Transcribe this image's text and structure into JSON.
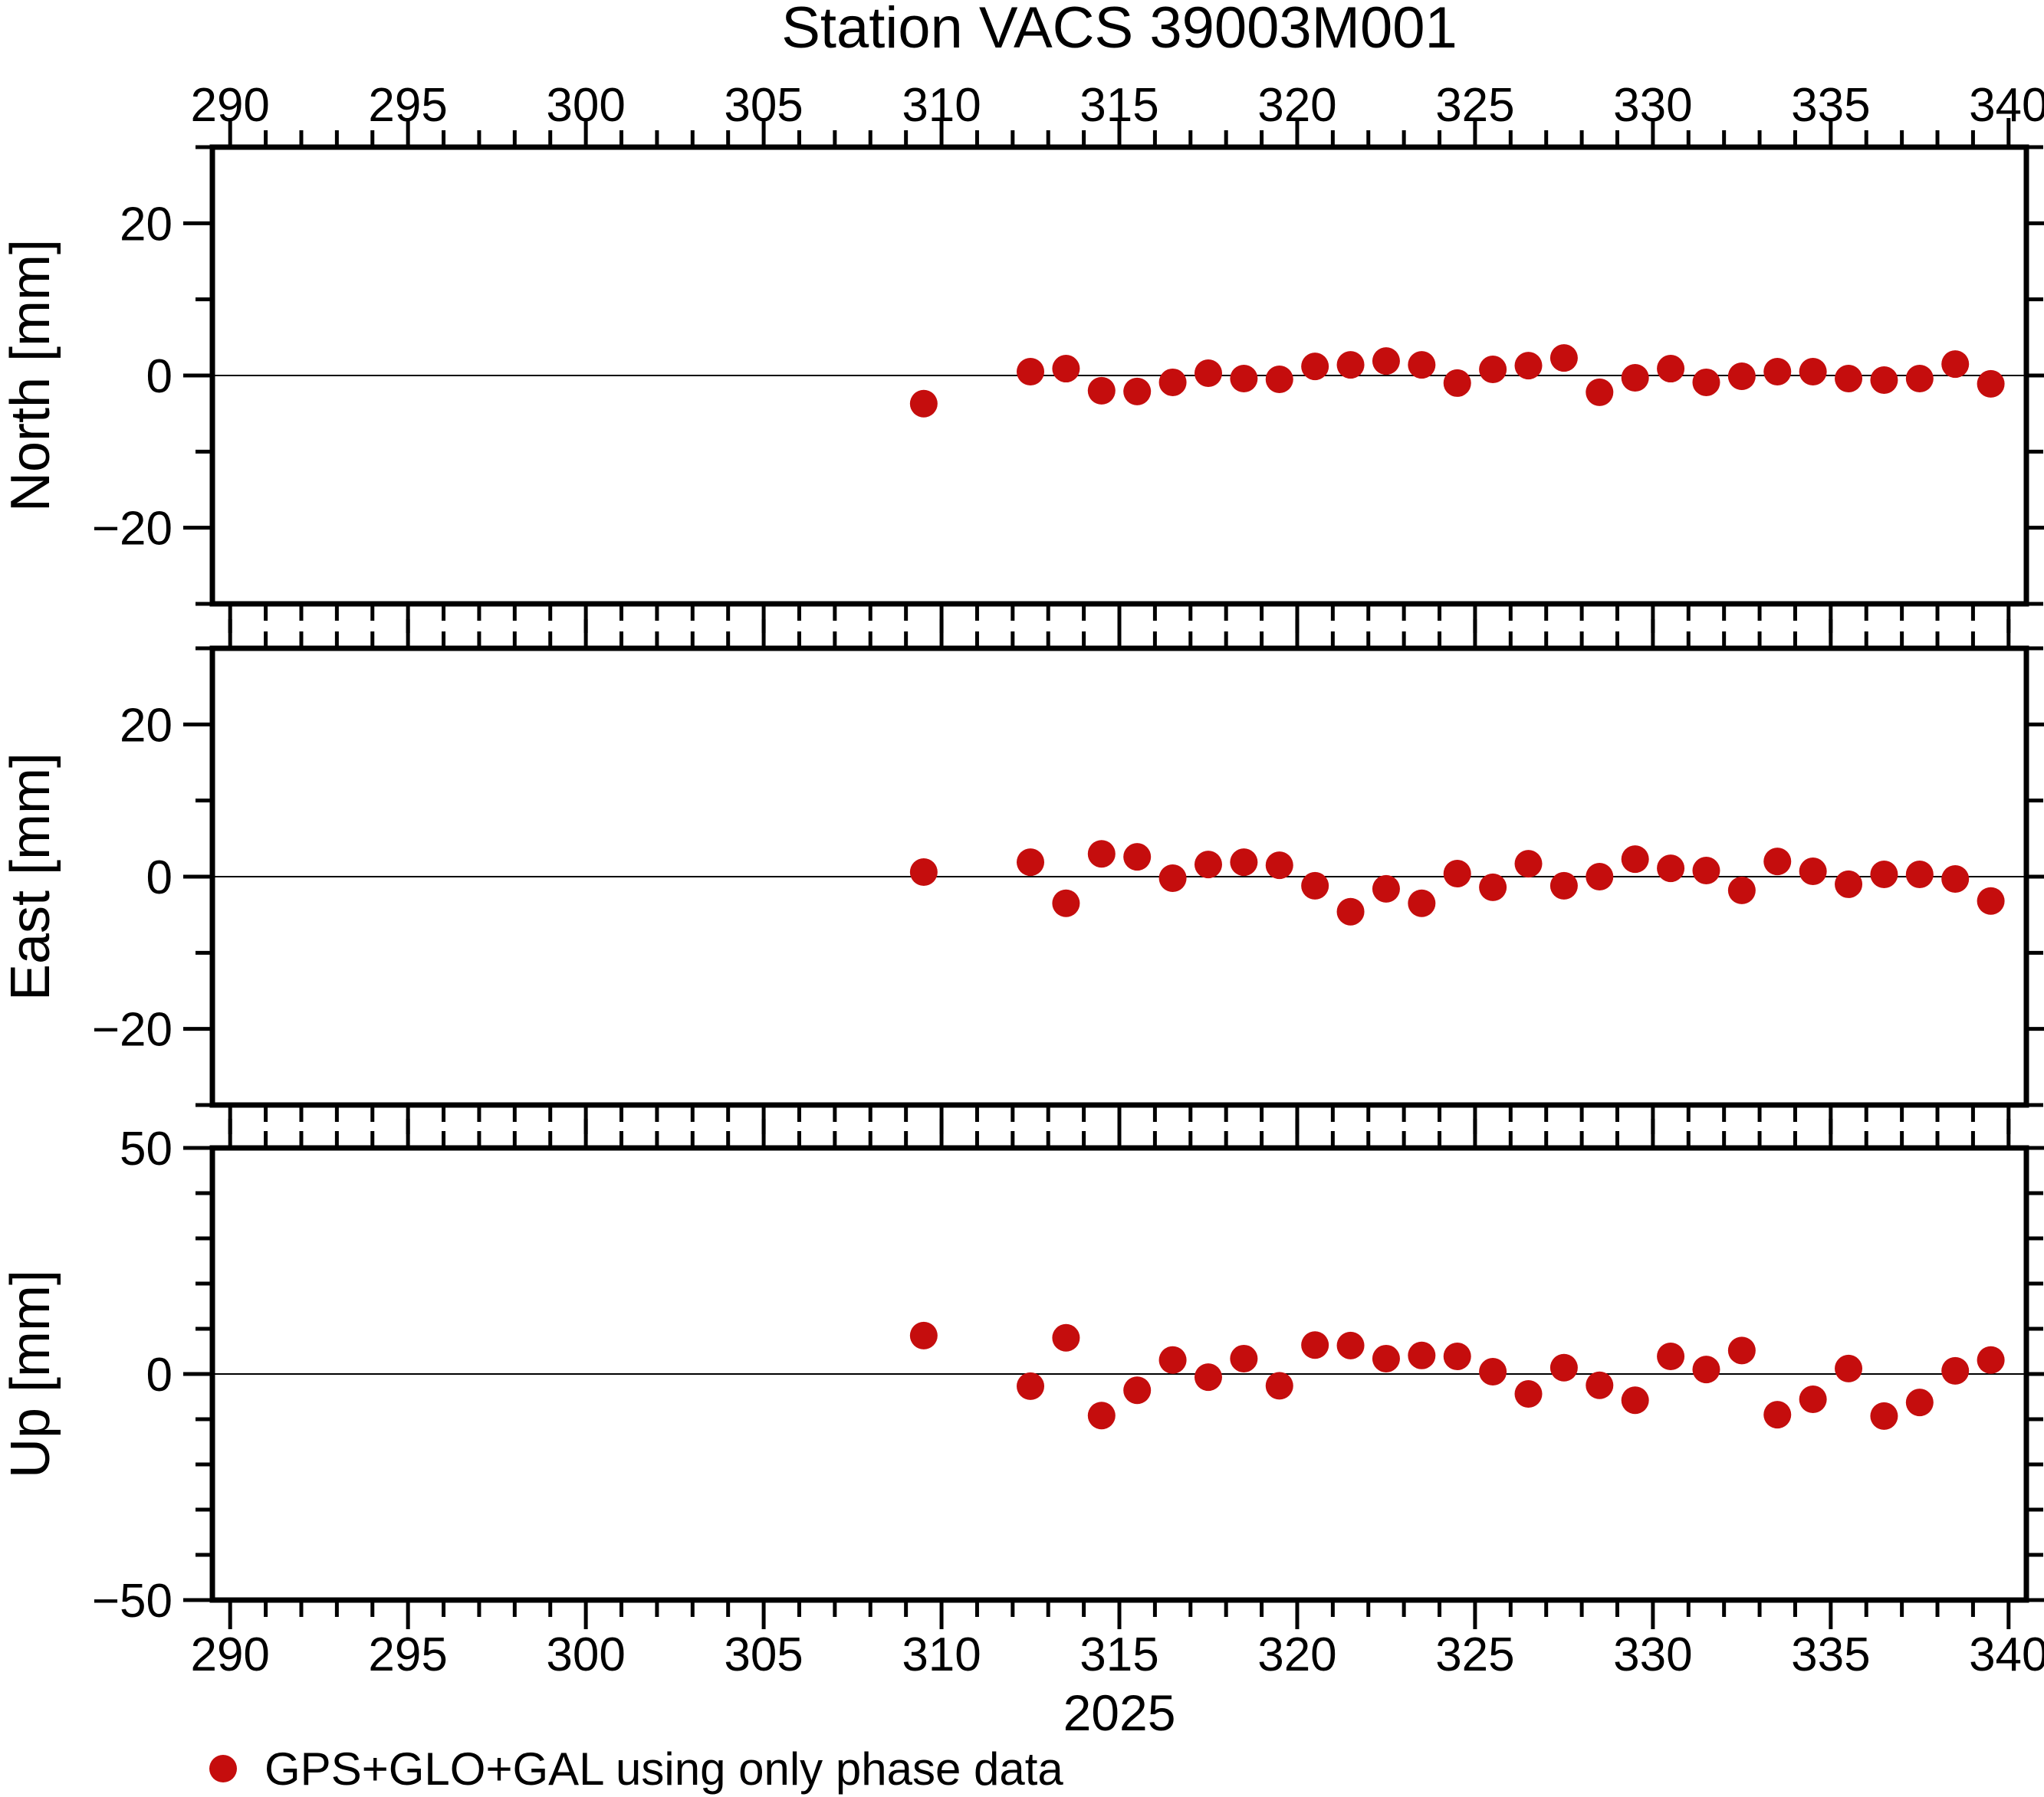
{
  "title": "Station VACS 39003M001",
  "xlabel": "2025",
  "legend": [
    {
      "label": "GPS+GLO+GAL using only phase data",
      "marker": "circle",
      "color": "#c50d0d"
    }
  ],
  "colors": {
    "marker": "#c50d0d",
    "frame": "#000000",
    "zeroline": "#000000"
  },
  "chart_data": [
    {
      "type": "scatter",
      "name": "GPS+GLO+GAL using only phase data",
      "ylabel": "North [mm]",
      "ylim": [
        -30,
        30
      ],
      "y_ticks_major": [
        20,
        0,
        -20
      ],
      "y_tick_labels": [
        "20",
        "0",
        "−20"
      ],
      "y_minor_step": 10,
      "x": [
        309.5,
        312.5,
        313.5,
        314.5,
        315.5,
        316.5,
        317.5,
        318.5,
        319.5,
        320.5,
        321.5,
        322.5,
        323.5,
        324.5,
        325.5,
        326.5,
        327.5,
        328.5,
        329.5,
        330.5,
        331.5,
        332.5,
        333.5,
        334.5,
        335.5,
        336.5,
        337.5,
        338.5,
        339.5
      ],
      "values": [
        -3.7,
        0.5,
        0.9,
        -2.0,
        -2.1,
        -0.9,
        0.3,
        -0.4,
        -0.5,
        1.2,
        1.4,
        1.9,
        1.4,
        -1.0,
        0.8,
        1.3,
        2.3,
        -2.2,
        -0.3,
        0.9,
        -0.9,
        -0.1,
        0.5,
        0.5,
        -0.4,
        -0.6,
        -0.4,
        1.5,
        -1.1
      ]
    },
    {
      "type": "scatter",
      "name": "GPS+GLO+GAL using only phase data",
      "ylabel": "East [mm]",
      "ylim": [
        -30,
        30
      ],
      "y_ticks_major": [
        20,
        0,
        -20
      ],
      "y_tick_labels": [
        "20",
        "0",
        "−20"
      ],
      "y_minor_step": 10,
      "x": [
        309.5,
        312.5,
        313.5,
        314.5,
        315.5,
        316.5,
        317.5,
        318.5,
        319.5,
        320.5,
        321.5,
        322.5,
        323.5,
        324.5,
        325.5,
        326.5,
        327.5,
        328.5,
        329.5,
        330.5,
        331.5,
        332.5,
        333.5,
        334.5,
        335.5,
        336.5,
        337.5,
        338.5,
        339.5
      ],
      "values": [
        0.6,
        1.9,
        -3.5,
        3.0,
        2.6,
        -0.2,
        1.6,
        1.9,
        1.5,
        -1.2,
        -4.6,
        -1.6,
        -3.5,
        0.4,
        -1.4,
        1.7,
        -1.2,
        0.0,
        2.3,
        1.1,
        0.8,
        -1.8,
        2.0,
        0.7,
        -1.0,
        0.3,
        0.3,
        -0.3,
        -3.2
      ]
    },
    {
      "type": "scatter",
      "name": "GPS+GLO+GAL using only phase data",
      "ylabel": "Up [mm]",
      "ylim": [
        -50,
        50
      ],
      "y_ticks_major": [
        50,
        0,
        -50
      ],
      "y_tick_labels": [
        "50",
        "0",
        "−50"
      ],
      "y_minor_step": 10,
      "x": [
        309.5,
        312.5,
        313.5,
        314.5,
        315.5,
        316.5,
        317.5,
        318.5,
        319.5,
        320.5,
        321.5,
        322.5,
        323.5,
        324.5,
        325.5,
        326.5,
        327.5,
        328.5,
        329.5,
        330.5,
        331.5,
        332.5,
        333.5,
        334.5,
        335.5,
        336.5,
        337.5,
        338.5,
        339.5
      ],
      "values": [
        8.5,
        -2.7,
        8.0,
        -9.2,
        -3.6,
        3.1,
        -0.7,
        3.4,
        -2.6,
        6.4,
        6.3,
        3.4,
        4.1,
        3.9,
        0.5,
        -4.4,
        1.4,
        -2.5,
        -5.8,
        3.9,
        1.0,
        5.2,
        -9.0,
        -5.6,
        1.2,
        -9.3,
        -6.3,
        0.7,
        3.1
      ]
    }
  ],
  "axis": {
    "xlim": [
      289.5,
      340.5
    ],
    "x_ticks_major": [
      290,
      295,
      300,
      305,
      310,
      315,
      320,
      325,
      330,
      335,
      340
    ],
    "x_tick_labels": [
      "290",
      "295",
      "300",
      "305",
      "310",
      "315",
      "320",
      "325",
      "330",
      "335",
      "340"
    ],
    "x_minor_step": 1
  }
}
